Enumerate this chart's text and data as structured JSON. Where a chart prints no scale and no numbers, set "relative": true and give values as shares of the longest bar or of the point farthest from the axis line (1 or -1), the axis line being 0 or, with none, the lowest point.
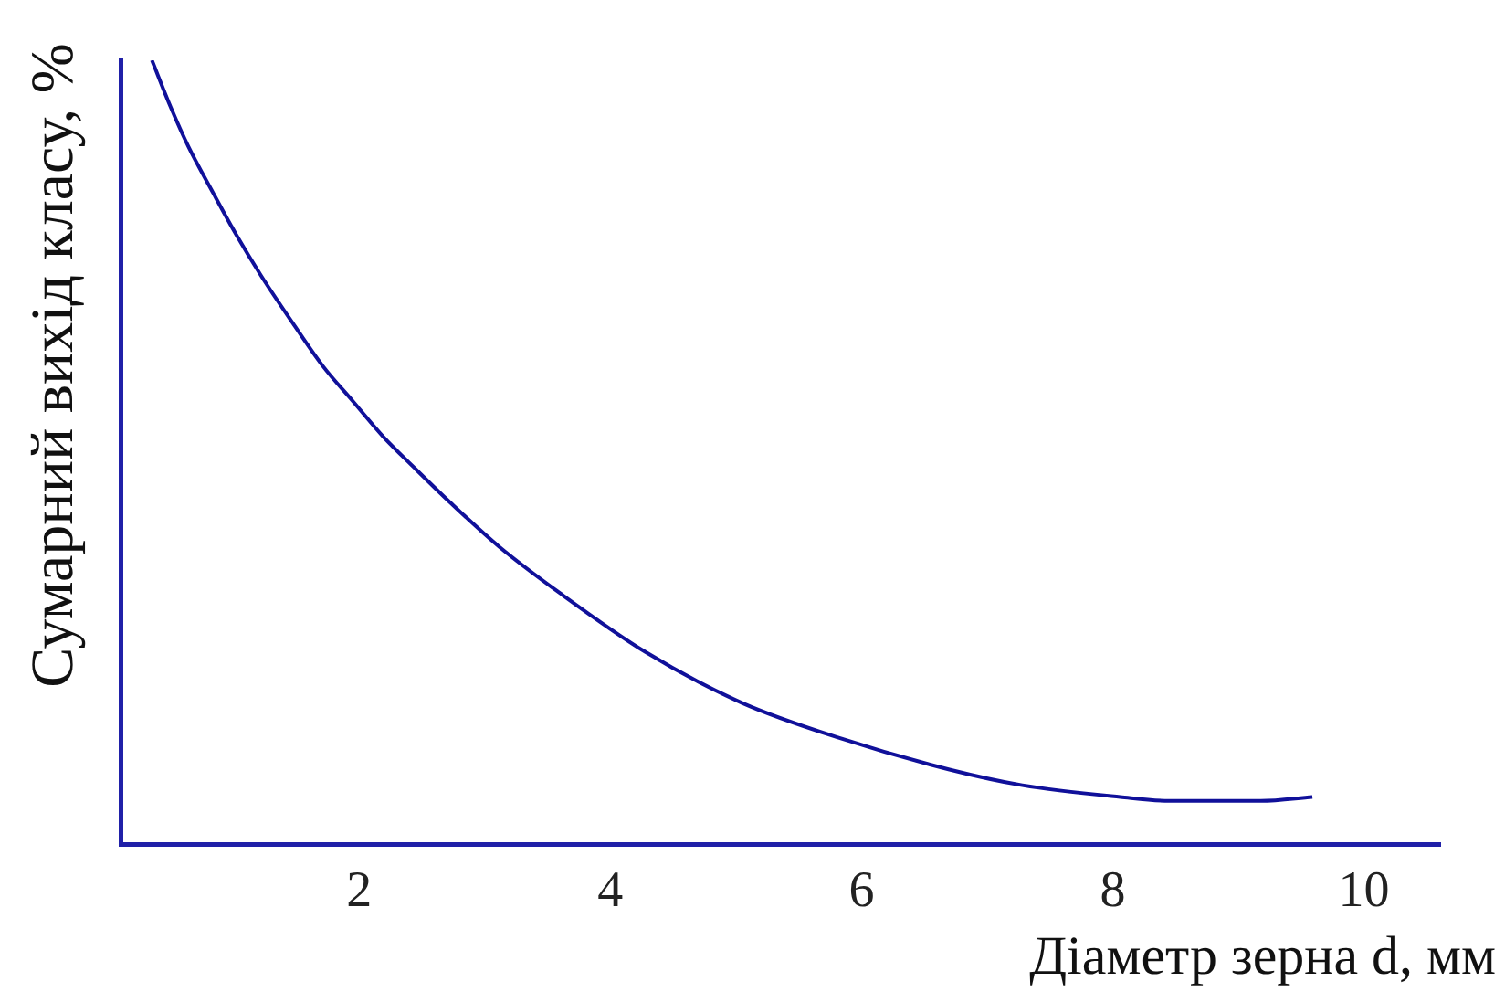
{
  "chart_data": {
    "type": "line",
    "xlabel": "Діаметр зерна d, мм",
    "ylabel": "Сумарний вихід класу, %",
    "relative": true,
    "xlim": [
      0.1,
      10.6
    ],
    "xticks": [
      2,
      4,
      6,
      8,
      10
    ],
    "color": "#10109a",
    "x": [
      0.35,
      0.5,
      0.64,
      0.84,
      1.03,
      1.22,
      1.47,
      1.71,
      1.95,
      2.19,
      2.44,
      2.73,
      3.11,
      3.6,
      4.28,
      5.05,
      5.83,
      6.7,
      7.28,
      8.06,
      8.45,
      9.18,
      9.59
    ],
    "values": [
      1,
      0.94,
      0.89,
      0.83,
      0.775,
      0.725,
      0.665,
      0.61,
      0.565,
      0.52,
      0.48,
      0.435,
      0.38,
      0.32,
      0.245,
      0.18,
      0.135,
      0.095,
      0.075,
      0.06,
      0.055,
      0.055,
      0.06
    ]
  }
}
